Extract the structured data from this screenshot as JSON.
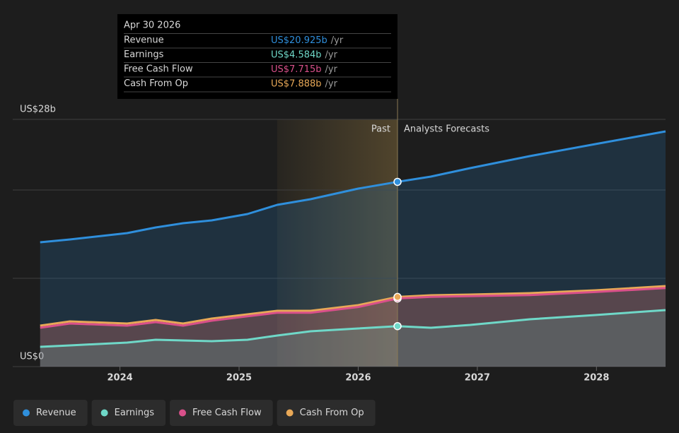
{
  "chart_data": {
    "type": "area",
    "x": [
      2023.33,
      2023.58,
      2024.06,
      2024.3,
      2024.53,
      2024.77,
      2025.07,
      2025.32,
      2025.6,
      2026.0,
      2026.33,
      2026.61,
      2026.94,
      2027.44,
      2027.99,
      2028.58
    ],
    "xlim": [
      2023.1,
      2028.58
    ],
    "xticks": [
      2024,
      2025,
      2026,
      2027,
      2028
    ],
    "ylim": [
      0,
      28
    ],
    "yticks": [
      {
        "value": 0,
        "label": "US$0"
      },
      {
        "value": 10,
        "label": null
      },
      {
        "value": 20,
        "label": null
      },
      {
        "value": 28,
        "label": "US$28b"
      }
    ],
    "grid": true,
    "past_start": 2025.32,
    "forecast_start": 2026.33,
    "annotations": {
      "past": "Past",
      "forecast": "Analysts Forecasts"
    },
    "tooltip": {
      "date": "Apr 30 2026",
      "unit": "/yr"
    },
    "legend": "bottom",
    "series": [
      {
        "name": "Revenue",
        "color": "#2f8fdc",
        "values": [
          14.08,
          14.4,
          15.12,
          15.76,
          16.24,
          16.56,
          17.28,
          18.32,
          18.96,
          20.16,
          20.925,
          21.52,
          22.48,
          23.84,
          25.2,
          26.64
        ],
        "value_labels": [
          null,
          null,
          null,
          null,
          null,
          null,
          null,
          null,
          null,
          null,
          "US$20.925b",
          null,
          null,
          null,
          null,
          null
        ]
      },
      {
        "name": "Earnings",
        "color": "#6fd8c8",
        "values": [
          2.24,
          2.4,
          2.72,
          3.04,
          2.96,
          2.88,
          3.04,
          3.52,
          4.0,
          4.32,
          4.584,
          4.4,
          4.72,
          5.36,
          5.84,
          6.4
        ],
        "value_labels": [
          null,
          null,
          null,
          null,
          null,
          null,
          null,
          null,
          null,
          null,
          "US$4.584b",
          null,
          null,
          null,
          null,
          null
        ]
      },
      {
        "name": "Free Cash Flow",
        "color": "#d9508a",
        "values": [
          4.4,
          4.88,
          4.64,
          5.04,
          4.64,
          5.2,
          5.7,
          6.1,
          6.1,
          6.75,
          7.715,
          7.9,
          7.98,
          8.1,
          8.45,
          8.9
        ],
        "value_labels": [
          null,
          null,
          null,
          null,
          null,
          null,
          null,
          null,
          null,
          null,
          "US$7.715b",
          null,
          null,
          null,
          null,
          null
        ]
      },
      {
        "name": "Cash From Op",
        "color": "#e8a857",
        "values": [
          4.64,
          5.12,
          4.88,
          5.28,
          4.88,
          5.44,
          5.92,
          6.32,
          6.32,
          6.96,
          7.888,
          8.08,
          8.16,
          8.32,
          8.64,
          9.12
        ],
        "value_labels": [
          null,
          null,
          null,
          null,
          null,
          null,
          null,
          null,
          null,
          null,
          "US$7.888b",
          null,
          null,
          null,
          null,
          null
        ]
      }
    ]
  }
}
